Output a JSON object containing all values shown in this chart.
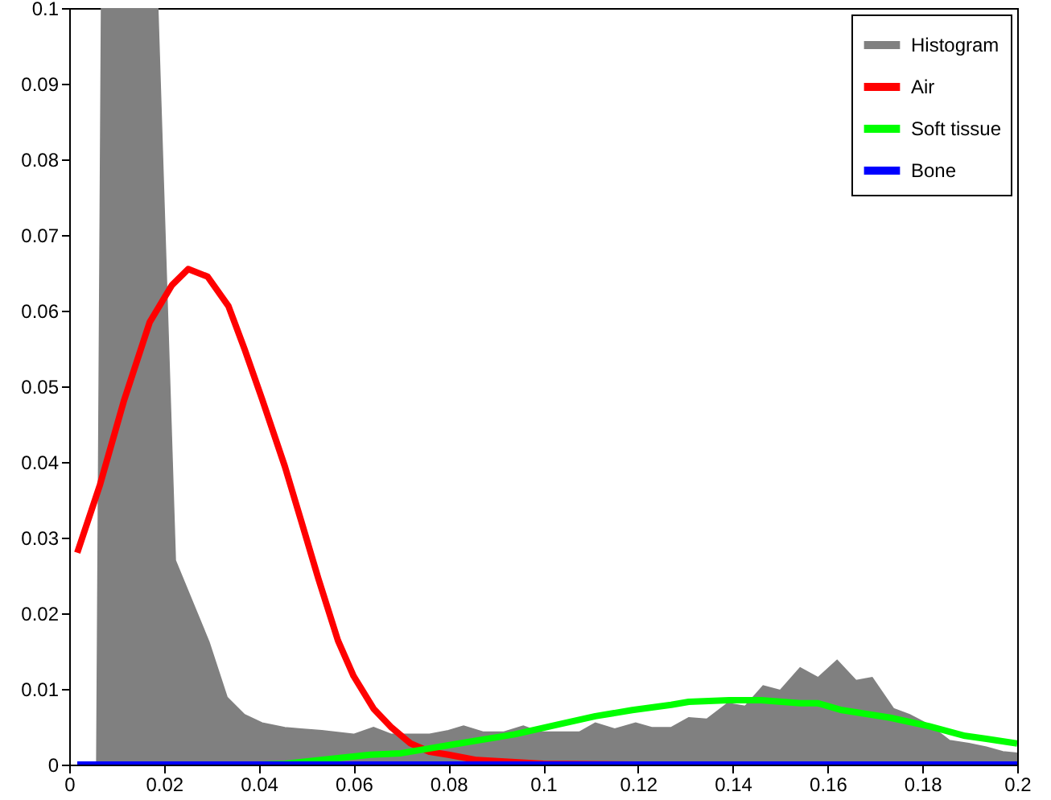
{
  "chart_data": {
    "type": "line",
    "xlim": [
      0,
      0.2
    ],
    "ylim": [
      0,
      0.1
    ],
    "xticks": [
      0,
      0.02,
      0.04,
      0.06,
      0.08,
      0.1,
      0.12,
      0.14,
      0.16,
      0.18,
      0.2
    ],
    "yticks": [
      0,
      0.01,
      0.02,
      0.03,
      0.04,
      0.05,
      0.06,
      0.07,
      0.08,
      0.09,
      0.1
    ],
    "grid": false,
    "legend": "top right",
    "series": [
      {
        "name": "Histogram",
        "type": "area",
        "color": "#808080",
        "x": [
          0.0058,
          0.0068,
          0.0187,
          0.0224,
          0.0295,
          0.0333,
          0.037,
          0.0407,
          0.0455,
          0.0489,
          0.0533,
          0.06,
          0.0642,
          0.068,
          0.076,
          0.08,
          0.0832,
          0.0873,
          0.0917,
          0.0958,
          0.0992,
          0.1076,
          0.111,
          0.1151,
          0.1195,
          0.1229,
          0.127,
          0.1307,
          0.1345,
          0.1389,
          0.1426,
          0.1464,
          0.15,
          0.1542,
          0.158,
          0.162,
          0.166,
          0.1694,
          0.1739,
          0.1773,
          0.1813,
          0.1857,
          0.1898,
          0.1935,
          0.197,
          0.2
        ],
        "values": [
          0,
          0.1,
          0.1,
          0.027,
          0.0162,
          0.0089,
          0.0066,
          0.0055,
          0.0049,
          0.0047,
          0.0045,
          0.004,
          0.0049,
          0.004,
          0.004,
          0.0045,
          0.0051,
          0.0043,
          0.0043,
          0.0051,
          0.0043,
          0.0043,
          0.0055,
          0.0047,
          0.0055,
          0.0049,
          0.0049,
          0.0062,
          0.006,
          0.0081,
          0.0077,
          0.0104,
          0.0098,
          0.0128,
          0.0115,
          0.0138,
          0.0111,
          0.0115,
          0.0074,
          0.0066,
          0.0053,
          0.0032,
          0.0028,
          0.0023,
          0.0017,
          0.0015
        ]
      },
      {
        "name": "Air",
        "color": "#ff0000",
        "x": [
          0.0017,
          0.0065,
          0.0115,
          0.017,
          0.0217,
          0.0251,
          0.0292,
          0.0336,
          0.037,
          0.0407,
          0.0455,
          0.0489,
          0.0526,
          0.0567,
          0.06,
          0.0642,
          0.068,
          0.072,
          0.076,
          0.08,
          0.086,
          0.1,
          0.12
        ],
        "values": [
          0.028,
          0.037,
          0.048,
          0.0585,
          0.0634,
          0.0655,
          0.0645,
          0.0606,
          0.0549,
          0.0483,
          0.0394,
          0.0323,
          0.0245,
          0.0164,
          0.0117,
          0.0074,
          0.0049,
          0.0028,
          0.0017,
          0.0013,
          0.0006,
          0.0001,
          0
        ]
      },
      {
        "name": "Soft tissue",
        "color": "#00ff00",
        "x": [
          0.04,
          0.0455,
          0.0635,
          0.07,
          0.0805,
          0.094,
          0.1032,
          0.111,
          0.1188,
          0.127,
          0.1307,
          0.1392,
          0.146,
          0.1542,
          0.158,
          0.163,
          0.1732,
          0.1813,
          0.189,
          0.1935,
          0.2
        ],
        "values": [
          0,
          0.0001,
          0.0013,
          0.0015,
          0.0026,
          0.004,
          0.0053,
          0.0064,
          0.0072,
          0.0079,
          0.0083,
          0.0085,
          0.0085,
          0.0081,
          0.0081,
          0.0072,
          0.0062,
          0.0051,
          0.0038,
          0.0034,
          0.0028
        ]
      },
      {
        "name": "Bone",
        "color": "#0000ff",
        "x": [
          0.0017,
          0.05,
          0.1,
          0.15,
          0.2
        ],
        "values": [
          0,
          0,
          0,
          0,
          0
        ]
      }
    ]
  }
}
